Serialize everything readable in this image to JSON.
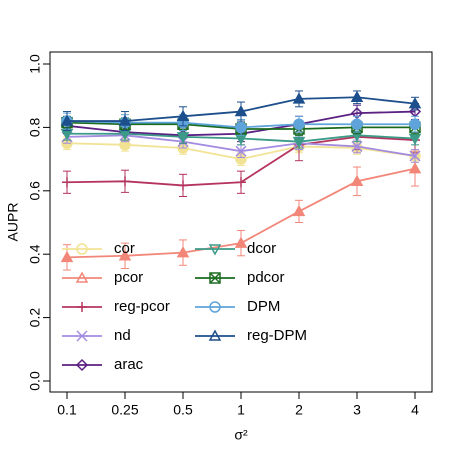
{
  "chart_data": {
    "type": "line",
    "xlabel": "σ²",
    "ylabel": "AUPR",
    "categories": [
      "0.1",
      "0.25",
      "0.5",
      "1",
      "2",
      "3",
      "4"
    ],
    "ylim": [
      0,
      1
    ],
    "yticks": [
      {
        "value": 0,
        "label": "0.0"
      },
      {
        "value": 0.2,
        "label": "0.2"
      },
      {
        "value": 0.4,
        "label": "0.4"
      },
      {
        "value": 0.6,
        "label": "0.6"
      },
      {
        "value": 0.8,
        "label": "0.8"
      },
      {
        "value": 1,
        "label": "1.0"
      }
    ],
    "series": [
      {
        "name": "cor",
        "color": "#f2e394",
        "marker": "circle",
        "values": [
          0.75,
          0.745,
          0.735,
          0.7,
          0.74,
          0.735,
          0.71
        ],
        "errors": [
          0.02,
          0.02,
          0.02,
          0.02,
          0.02,
          0.02,
          0.02
        ]
      },
      {
        "name": "pcor",
        "color": "#f28779",
        "marker": "triangle",
        "values": [
          0.39,
          0.395,
          0.405,
          0.435,
          0.535,
          0.63,
          0.67
        ],
        "errors": [
          0.04,
          0.04,
          0.04,
          0.04,
          0.035,
          0.045,
          0.055
        ]
      },
      {
        "name": "reg-pcor",
        "color": "#b5345e",
        "marker": "plus",
        "values": [
          0.627,
          0.63,
          0.617,
          0.627,
          0.745,
          0.77,
          0.76
        ],
        "errors": [
          0.035,
          0.035,
          0.035,
          0.035,
          0.05,
          0.04,
          0.04
        ]
      },
      {
        "name": "nd",
        "color": "#a38be0",
        "marker": "x",
        "values": [
          0.77,
          0.775,
          0.755,
          0.725,
          0.75,
          0.74,
          0.71
        ],
        "errors": [
          0.02,
          0.02,
          0.02,
          0.02,
          0.02,
          0.02,
          0.02
        ]
      },
      {
        "name": "arac",
        "color": "#5b2183",
        "marker": "diamond",
        "values": [
          0.805,
          0.785,
          0.775,
          0.78,
          0.81,
          0.845,
          0.85
        ],
        "errors": [
          0.025,
          0.025,
          0.025,
          0.025,
          0.025,
          0.025,
          0.025
        ]
      },
      {
        "name": "dcor",
        "color": "#3c9a88",
        "marker": "triangle-down",
        "values": [
          0.78,
          0.78,
          0.77,
          0.765,
          0.755,
          0.775,
          0.765
        ],
        "errors": [
          0.02,
          0.02,
          0.02,
          0.02,
          0.02,
          0.02,
          0.02
        ]
      },
      {
        "name": "pdcor",
        "color": "#1b6b1f",
        "marker": "square-x",
        "values": [
          0.815,
          0.81,
          0.81,
          0.795,
          0.795,
          0.8,
          0.8
        ],
        "errors": [
          0.02,
          0.02,
          0.02,
          0.02,
          0.02,
          0.02,
          0.02
        ]
      },
      {
        "name": "DPM",
        "color": "#5ea3da",
        "marker": "circle",
        "values": [
          0.82,
          0.815,
          0.815,
          0.8,
          0.81,
          0.81,
          0.81
        ],
        "errors": [
          0.025,
          0.025,
          0.025,
          0.025,
          0.025,
          0.025,
          0.025
        ]
      },
      {
        "name": "reg-DPM",
        "color": "#1d4f8c",
        "marker": "triangle",
        "values": [
          0.82,
          0.82,
          0.835,
          0.85,
          0.89,
          0.895,
          0.875
        ],
        "errors": [
          0.03,
          0.03,
          0.03,
          0.03,
          0.025,
          0.02,
          0.02
        ]
      }
    ]
  }
}
